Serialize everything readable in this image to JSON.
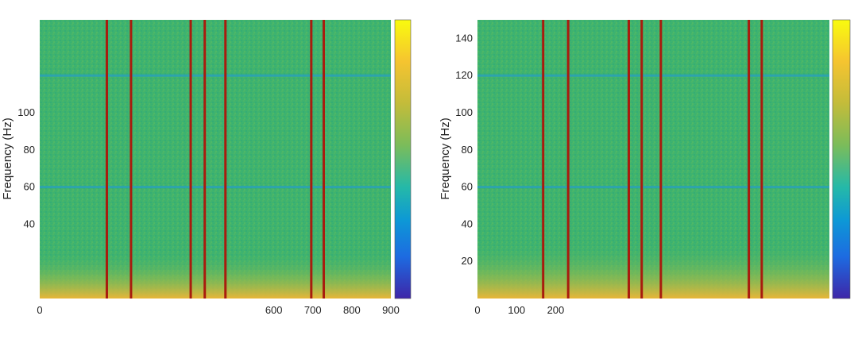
{
  "chart_data": [
    {
      "type": "heatmap",
      "title": "",
      "xlabel": "",
      "ylabel": "Frequency (Hz)",
      "xlim": [
        0,
        900
      ],
      "ylim": [
        0,
        150
      ],
      "x_ticks": [
        0,
        100,
        200,
        300,
        400,
        500,
        600,
        700,
        800,
        900
      ],
      "x_tick_labels": [
        "0",
        "",
        "",
        "",
        "",
        "",
        "600",
        "700",
        "800",
        "900"
      ],
      "y_ticks": [
        40,
        60,
        80,
        100
      ],
      "y_tick_labels": [
        "40",
        "60",
        "80",
        "100"
      ],
      "colormap": "parula",
      "background_color": "#3db46e",
      "low_freq_color": "#d7b53a",
      "marker_color": "#a81c0e",
      "horizontal_bands_hz": [
        60,
        120
      ],
      "band_color": "#2aa0b8",
      "vertical_markers_x": [
        172,
        234,
        387,
        423,
        476,
        696,
        728
      ],
      "colorbar": true
    },
    {
      "type": "heatmap",
      "title": "",
      "xlabel": "",
      "ylabel": "Frequency (Hz)",
      "xlim": [
        0,
        900
      ],
      "ylim": [
        0,
        150
      ],
      "x_ticks": [
        0,
        100,
        200,
        300,
        400,
        500,
        600,
        700,
        800,
        900
      ],
      "x_tick_labels": [
        "0",
        "100",
        "200",
        "",
        "",
        "",
        "",
        "",
        "",
        ""
      ],
      "y_ticks": [
        20,
        40,
        60,
        80,
        100,
        120,
        140
      ],
      "y_tick_labels": [
        "20",
        "40",
        "60",
        "80",
        "100",
        "120",
        "140"
      ],
      "colormap": "parula",
      "background_color": "#3db46e",
      "low_freq_color": "#d7b53a",
      "marker_color": "#a81c0e",
      "horizontal_bands_hz": [
        60,
        120
      ],
      "band_color": "#2aa0b8",
      "vertical_markers_x": [
        168,
        232,
        387,
        420,
        469,
        694,
        727
      ],
      "colorbar": true
    }
  ]
}
